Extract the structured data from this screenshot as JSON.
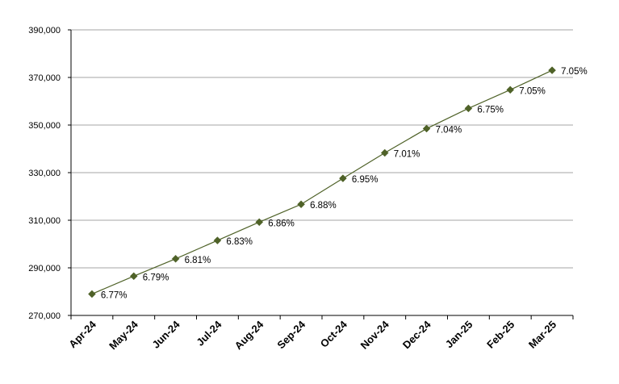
{
  "chart_data": {
    "type": "line",
    "x": [
      "Apr-24",
      "May-24",
      "Jun-24",
      "Jul-24",
      "Aug-24",
      "Sep-24",
      "Oct-24",
      "Nov-24",
      "Dec-24",
      "Jan-25",
      "Feb-25",
      "Mar-25"
    ],
    "series": [
      {
        "values": [
          279000,
          286500,
          293800,
          301500,
          309200,
          316700,
          327600,
          338300,
          348500,
          357000,
          364800,
          373000
        ],
        "data_labels": [
          "6.77%",
          "6.79%",
          "6.81%",
          "6.83%",
          "6.86%",
          "6.88%",
          "6.95%",
          "7.01%",
          "7.04%",
          "6.75%",
          "7.05%",
          "7.05%"
        ],
        "color": "#4F6228",
        "marker": "diamond"
      }
    ],
    "ylim": [
      270000,
      390000
    ],
    "yticks": [
      270000,
      290000,
      310000,
      330000,
      350000,
      370000,
      390000
    ],
    "ytick_labels": [
      "270,000",
      "290,000",
      "310,000",
      "330,000",
      "350,000",
      "370,000",
      "390,000"
    ],
    "grid": true,
    "grid_color": "#A6A6A6",
    "legend": false,
    "title": "",
    "xlabel": "",
    "ylabel": ""
  }
}
